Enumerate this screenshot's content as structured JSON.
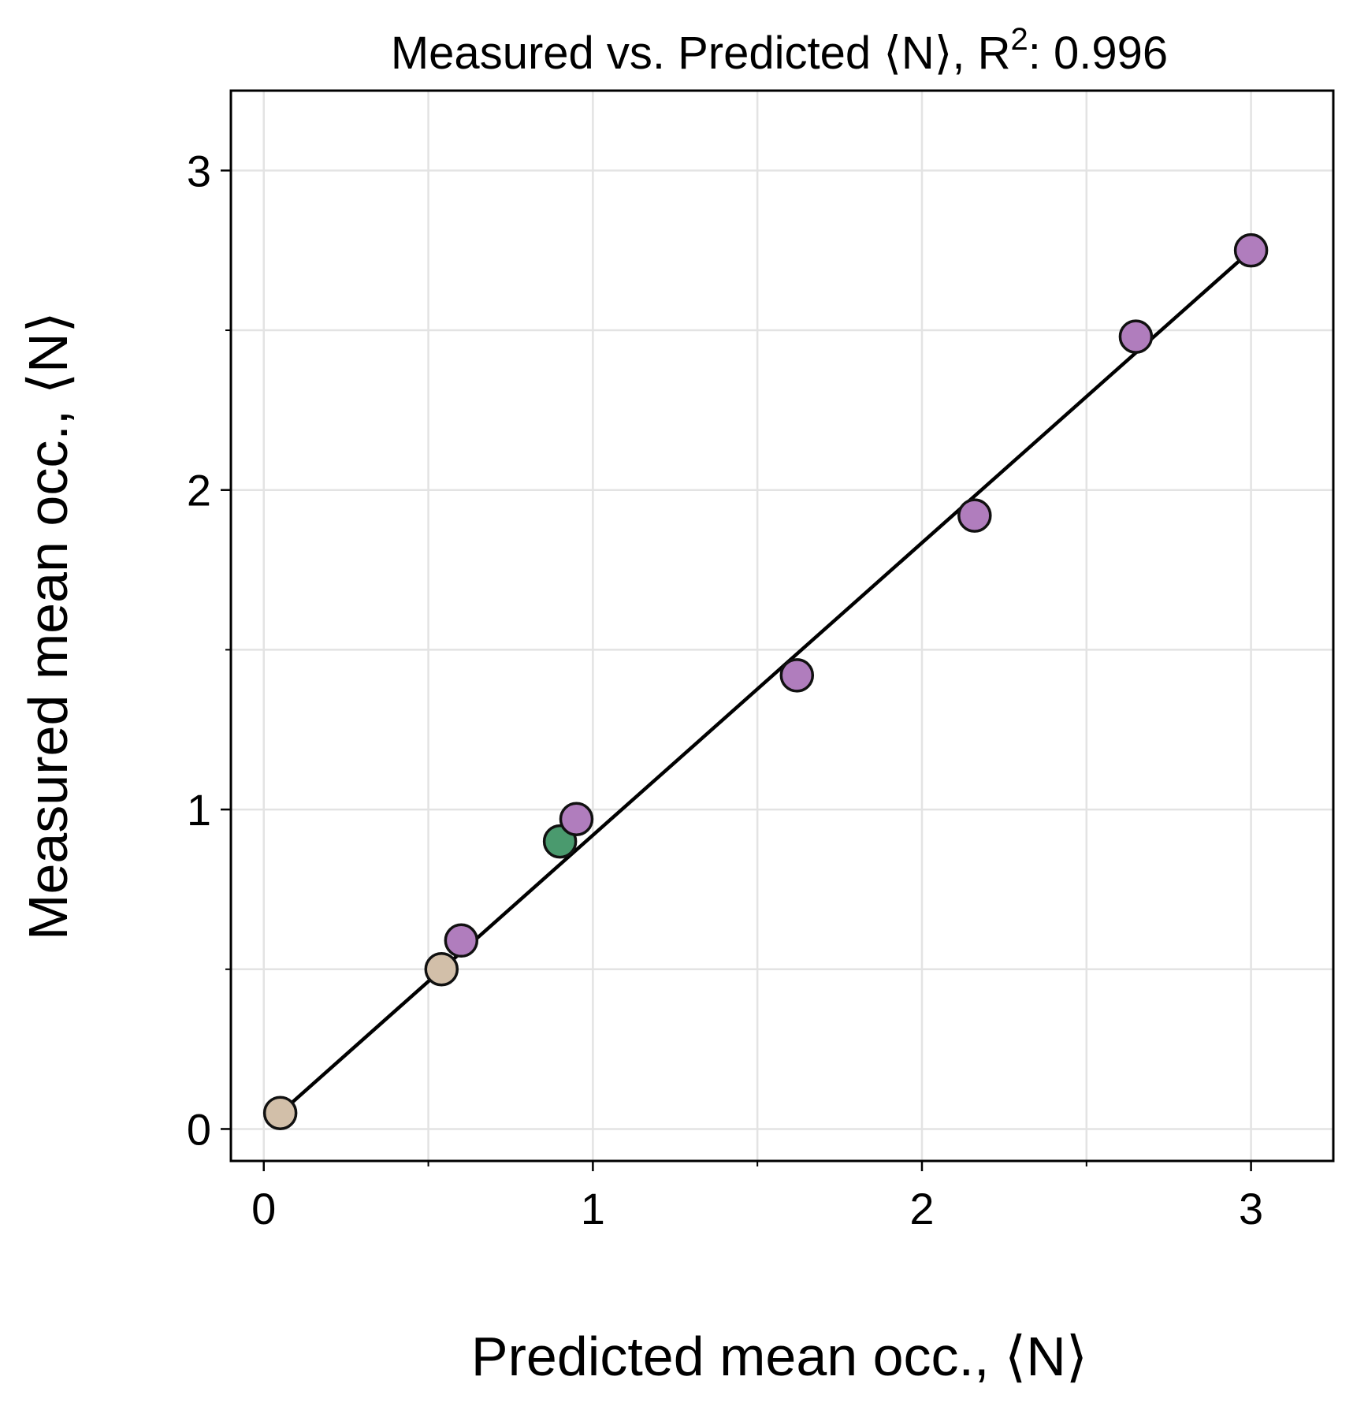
{
  "chart_data": {
    "type": "scatter",
    "title": {
      "prefix": "Measured vs. Predicted ⟨N⟩, R",
      "superscript": "2",
      "suffix": ": 0.996"
    },
    "xlabel": "Predicted mean occ., ⟨N⟩",
    "ylabel": "Measured mean occ., ⟨N⟩",
    "xlim": [
      -0.1,
      3.25
    ],
    "ylim": [
      -0.1,
      3.25
    ],
    "xticks": [
      0,
      1,
      2,
      3
    ],
    "yticks": [
      0,
      1,
      2,
      3
    ],
    "minor_ticks": [
      0.5,
      1.5,
      2.5
    ],
    "grid": true,
    "fit_line": {
      "x": [
        0.05,
        3.0
      ],
      "y": [
        0.05,
        2.75
      ]
    },
    "points": [
      {
        "x": 0.05,
        "y": 0.05,
        "color": "#d2bfa9"
      },
      {
        "x": 0.54,
        "y": 0.5,
        "color": "#d2bfa9"
      },
      {
        "x": 0.6,
        "y": 0.59,
        "color": "#b07dbd"
      },
      {
        "x": 0.9,
        "y": 0.9,
        "color": "#4a9a6e"
      },
      {
        "x": 0.95,
        "y": 0.97,
        "color": "#b07dbd"
      },
      {
        "x": 1.62,
        "y": 1.42,
        "color": "#b07dbd"
      },
      {
        "x": 2.16,
        "y": 1.92,
        "color": "#b07dbd"
      },
      {
        "x": 2.65,
        "y": 2.48,
        "color": "#b07dbd"
      },
      {
        "x": 3.0,
        "y": 2.75,
        "color": "#b07dbd"
      }
    ]
  }
}
